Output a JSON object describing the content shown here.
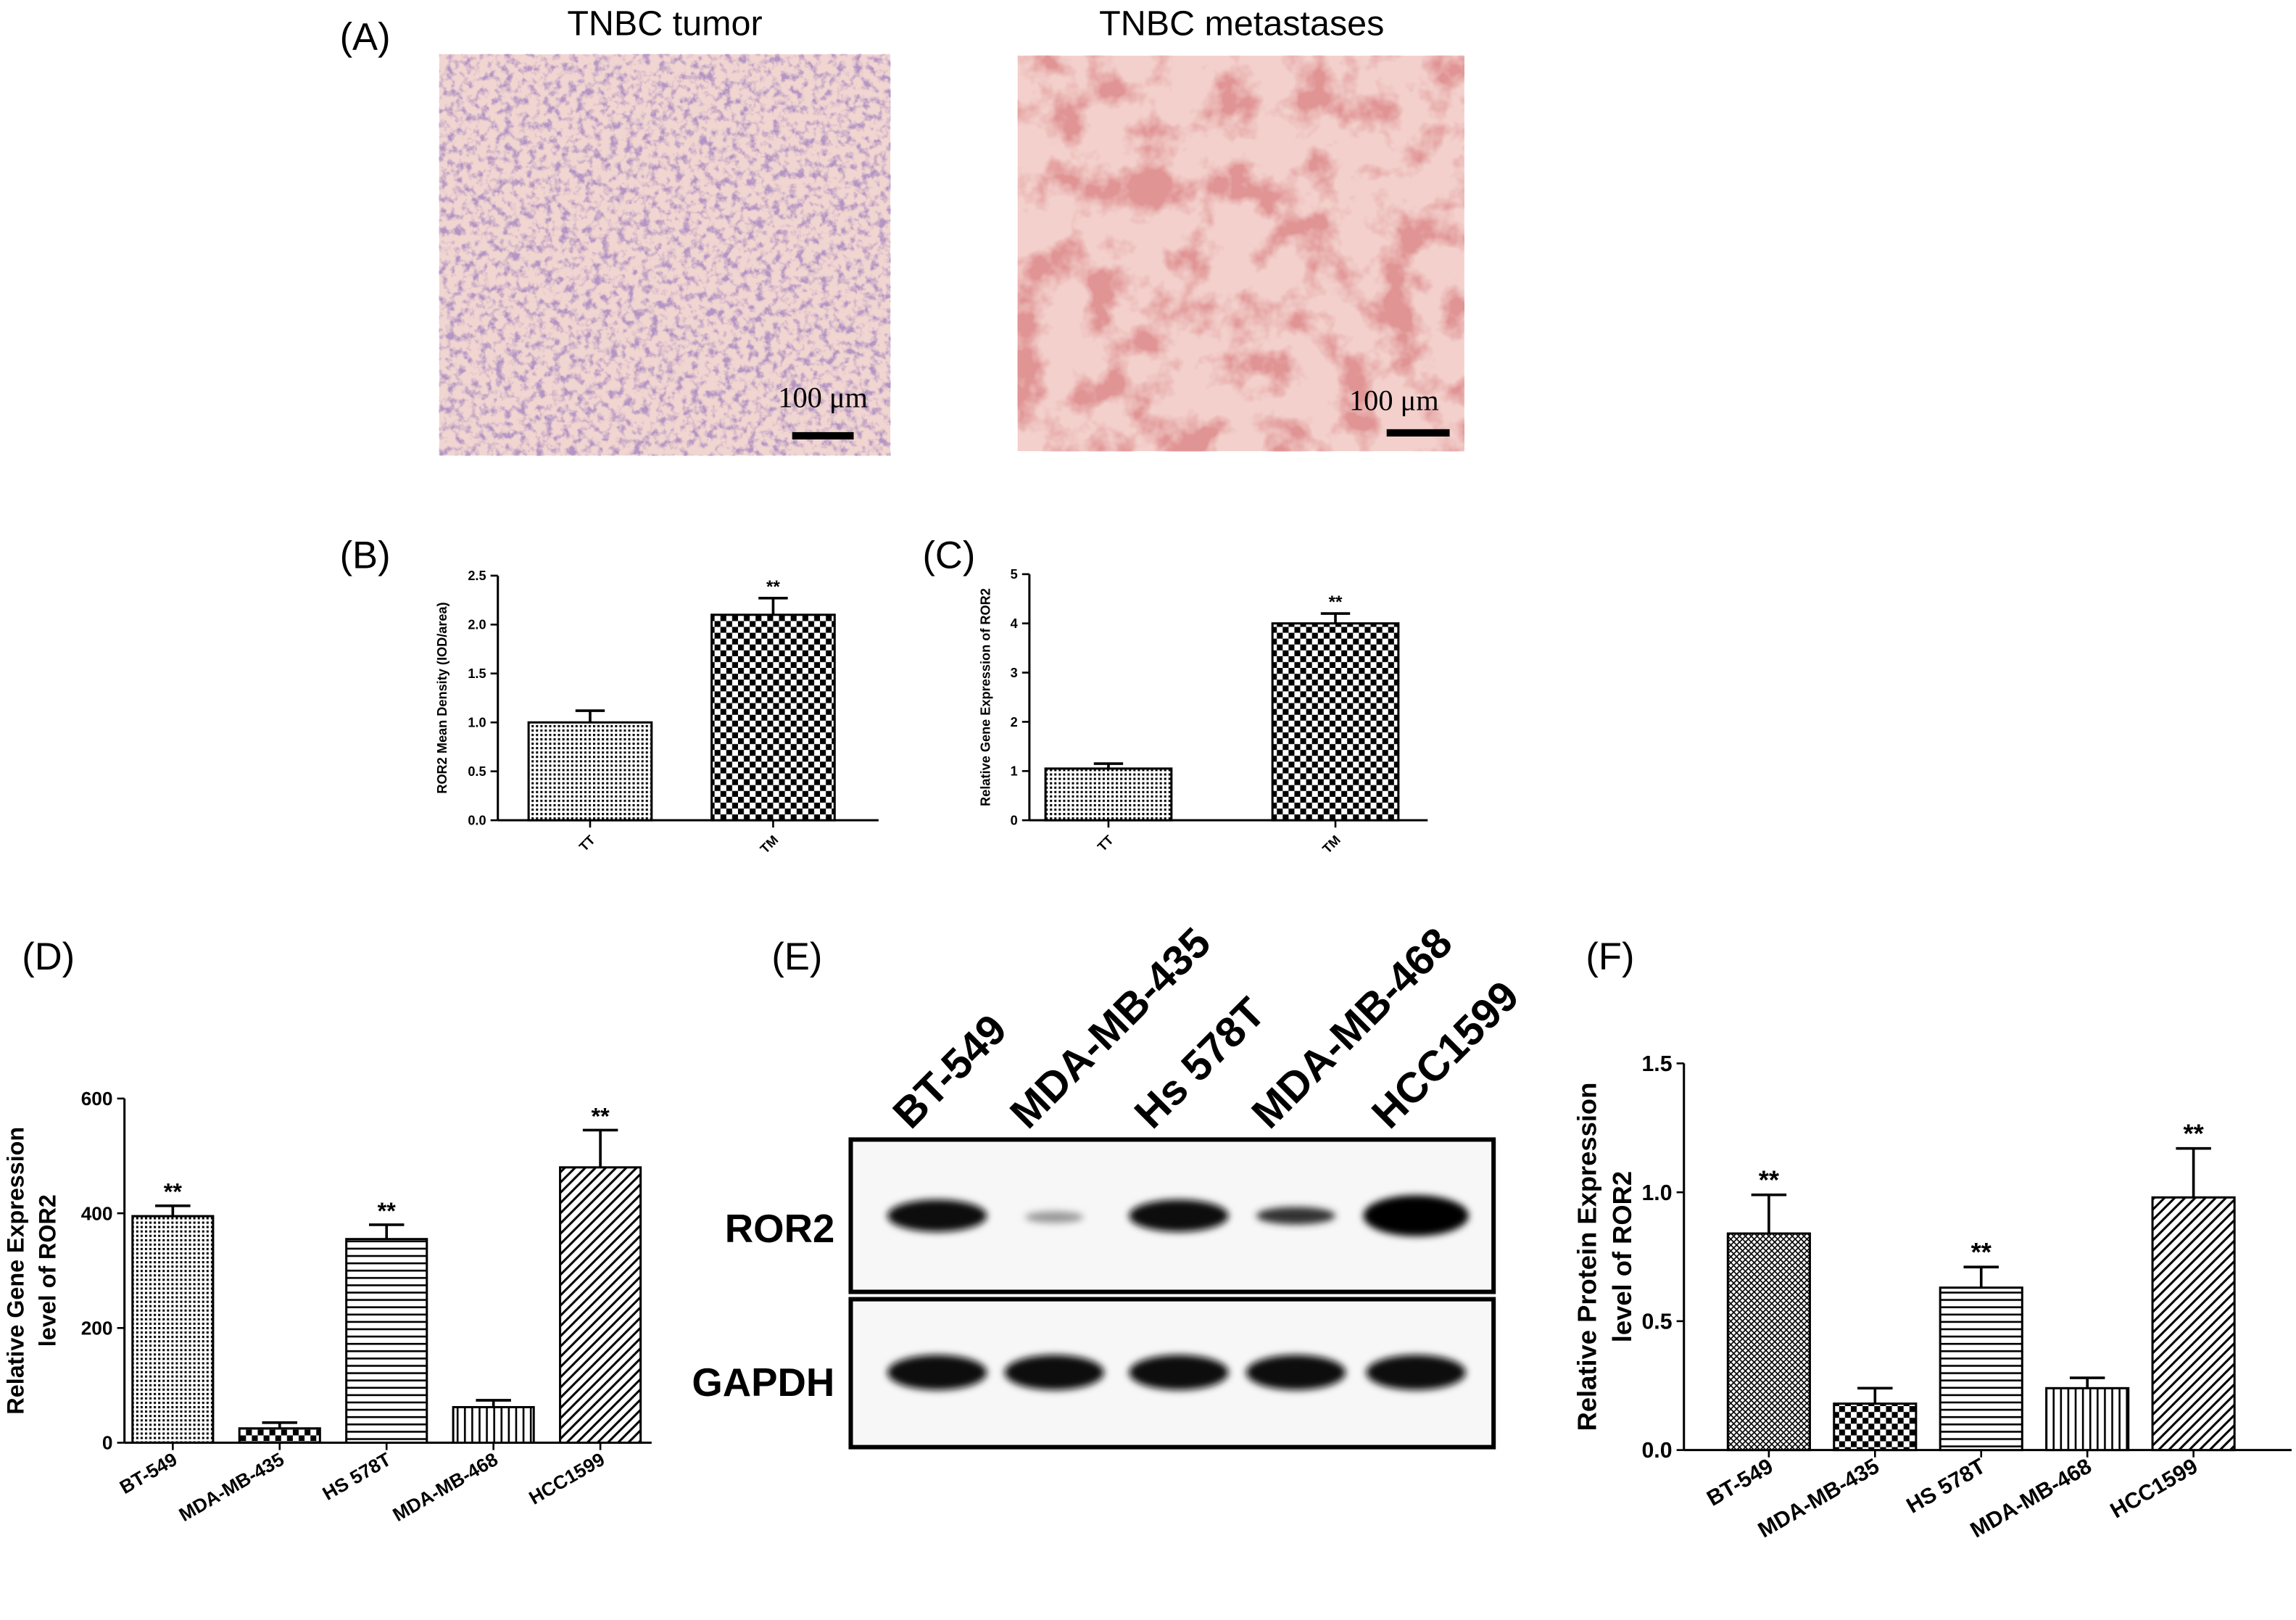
{
  "panel_a": {
    "label": "(A)",
    "images": [
      {
        "title": "TNBC tumor",
        "scale_bar": "100 μm"
      },
      {
        "title": "TNBC metastases",
        "scale_bar": "100 μm"
      }
    ]
  },
  "panel_e": {
    "label": "(E)",
    "lanes": [
      "BT-549",
      "MDA-MB-435",
      "Hs 578T",
      "MDA-MB-468",
      "HCC1599"
    ],
    "rows": [
      "ROR2",
      "GAPDH"
    ]
  },
  "chart_data": [
    {
      "type": "bar",
      "panel_label": "(B)",
      "ylabel": "ROR2 Mean Density (IOD/area)",
      "categories": [
        "TT",
        "TM"
      ],
      "values": [
        1.0,
        2.1
      ],
      "errors": [
        0.12,
        0.17
      ],
      "annotations": [
        null,
        "**"
      ],
      "patterns": [
        "fine",
        "checker"
      ],
      "color": "#000000",
      "ylim": [
        0,
        2.5
      ],
      "yticks": [
        {
          "value": 0,
          "label": "0.0"
        },
        {
          "value": 0.5,
          "label": "0.5"
        },
        {
          "value": 1,
          "label": "1.0"
        },
        {
          "value": 1.5,
          "label": "1.5"
        },
        {
          "value": 2,
          "label": "2.0"
        },
        {
          "value": 2.5,
          "label": "2.5"
        }
      ]
    },
    {
      "type": "bar",
      "panel_label": "(C)",
      "ylabel": "Relative Gene Expression of ROR2",
      "categories": [
        "TT",
        "TM"
      ],
      "values": [
        1.05,
        4.0
      ],
      "errors": [
        0.1,
        0.2
      ],
      "annotations": [
        null,
        "**"
      ],
      "patterns": [
        "fine",
        "checker"
      ],
      "color": "#000000",
      "ylim": [
        0,
        5
      ],
      "yticks": [
        0,
        1,
        2,
        3,
        4,
        5
      ]
    },
    {
      "type": "bar",
      "panel_label": "(D)",
      "ylabel": [
        "Relative Gene Expression",
        "level of ROR2"
      ],
      "categories": [
        "BT-549",
        "MDA-MB-435",
        "HS 578T",
        "MDA-MB-468",
        "HCC1599"
      ],
      "values": [
        395,
        25,
        355,
        62,
        480
      ],
      "errors": [
        18,
        10,
        25,
        12,
        65
      ],
      "annotations": [
        "**",
        null,
        "**",
        null,
        "**"
      ],
      "patterns": [
        "fine",
        "checker",
        "hlines",
        "vlines",
        "diag"
      ],
      "color": "#000000",
      "ylim": [
        0,
        600
      ],
      "yticks": [
        0,
        200,
        400,
        600
      ]
    },
    {
      "type": "bar",
      "panel_label": "(F)",
      "ylabel": [
        "Relative Protein Expression",
        "level of ROR2"
      ],
      "categories": [
        "BT-549",
        "MDA-MB-435",
        "HS 578T",
        "MDA-MB-468",
        "HCC1599"
      ],
      "values": [
        0.84,
        0.18,
        0.63,
        0.24,
        0.98
      ],
      "errors": [
        0.15,
        0.06,
        0.08,
        0.04,
        0.19
      ],
      "annotations": [
        "**",
        null,
        "**",
        null,
        "**"
      ],
      "patterns": [
        "cross",
        "checker",
        "hlines",
        "vlines",
        "diag"
      ],
      "color": "#000000",
      "ylim": [
        0,
        1.5
      ],
      "yticks": [
        {
          "value": 0,
          "label": "0.0"
        },
        {
          "value": 0.5,
          "label": "0.5"
        },
        {
          "value": 1,
          "label": "1.0"
        },
        {
          "value": 1.5,
          "label": "1.5"
        }
      ]
    }
  ]
}
